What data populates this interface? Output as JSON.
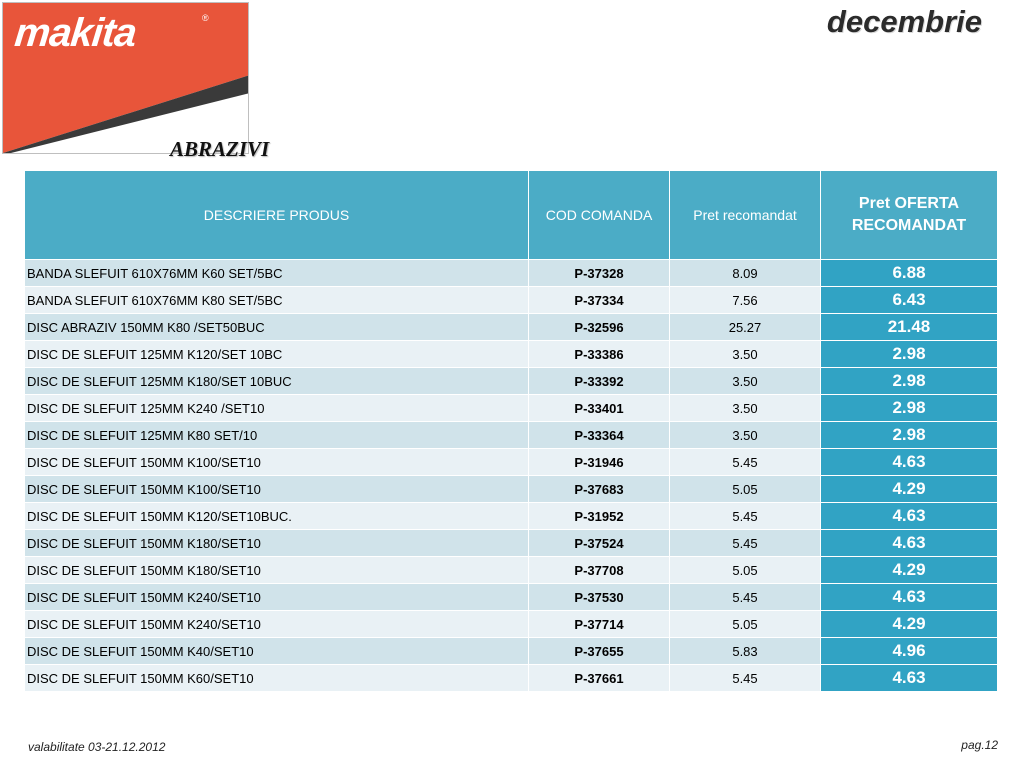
{
  "brand": {
    "logo_text": "makita",
    "registered_mark": "®"
  },
  "header": {
    "month": "decembrie",
    "section_title": "ABRAZIVI"
  },
  "table": {
    "columns": [
      "DESCRIERE PRODUS",
      "COD COMANDA",
      "Pret recomandat",
      "Pret OFERTA RECOMANDAT"
    ],
    "rows": [
      {
        "description": "BANDA SLEFUIT 610X76MM  K60 SET/5BC",
        "code": "P-37328",
        "price": "8.09",
        "offer": "6.88"
      },
      {
        "description": "BANDA SLEFUIT 610X76MM  K80 SET/5BC",
        "code": "P-37334",
        "price": "7.56",
        "offer": "6.43"
      },
      {
        "description": "DISC ABRAZIV 150MM  K80 /SET50BUC",
        "code": "P-32596",
        "price": "25.27",
        "offer": "21.48"
      },
      {
        "description": "DISC DE SLEFUIT 125MM  K120/SET 10BC",
        "code": "P-33386",
        "price": "3.50",
        "offer": "2.98"
      },
      {
        "description": "DISC DE SLEFUIT 125MM  K180/SET 10BUC",
        "code": "P-33392",
        "price": "3.50",
        "offer": "2.98"
      },
      {
        "description": "DISC DE SLEFUIT 125MM  K240 /SET10",
        "code": "P-33401",
        "price": "3.50",
        "offer": "2.98"
      },
      {
        "description": "DISC DE SLEFUIT 125MM  K80 SET/10",
        "code": "P-33364",
        "price": "3.50",
        "offer": "2.98"
      },
      {
        "description": "DISC DE SLEFUIT 150MM  K100/SET10",
        "code": "P-31946",
        "price": "5.45",
        "offer": "4.63"
      },
      {
        "description": "DISC DE SLEFUIT 150MM  K100/SET10",
        "code": "P-37683",
        "price": "5.05",
        "offer": "4.29"
      },
      {
        "description": "DISC DE SLEFUIT 150MM  K120/SET10BUC.",
        "code": "P-31952",
        "price": "5.45",
        "offer": "4.63"
      },
      {
        "description": "DISC DE SLEFUIT 150MM  K180/SET10",
        "code": "P-37524",
        "price": "5.45",
        "offer": "4.63"
      },
      {
        "description": "DISC DE SLEFUIT 150MM  K180/SET10",
        "code": "P-37708",
        "price": "5.05",
        "offer": "4.29"
      },
      {
        "description": "DISC DE SLEFUIT 150MM  K240/SET10",
        "code": "P-37530",
        "price": "5.45",
        "offer": "4.63"
      },
      {
        "description": "DISC DE SLEFUIT 150MM  K240/SET10",
        "code": "P-37714",
        "price": "5.05",
        "offer": "4.29"
      },
      {
        "description": "DISC DE SLEFUIT 150MM  K40/SET10",
        "code": "P-37655",
        "price": "5.83",
        "offer": "4.96"
      },
      {
        "description": "DISC DE SLEFUIT 150MM  K60/SET10",
        "code": "P-37661",
        "price": "5.45",
        "offer": "4.63"
      }
    ]
  },
  "footer": {
    "validity": "valabilitate 03-21.12.2012",
    "page": "pag.12"
  },
  "colors": {
    "brand_red": "#e8553a",
    "header_blue": "#4bacc6",
    "offer_blue": "#31a3c4",
    "row_odd": "#d0e3ea",
    "row_even": "#e9f1f5"
  }
}
